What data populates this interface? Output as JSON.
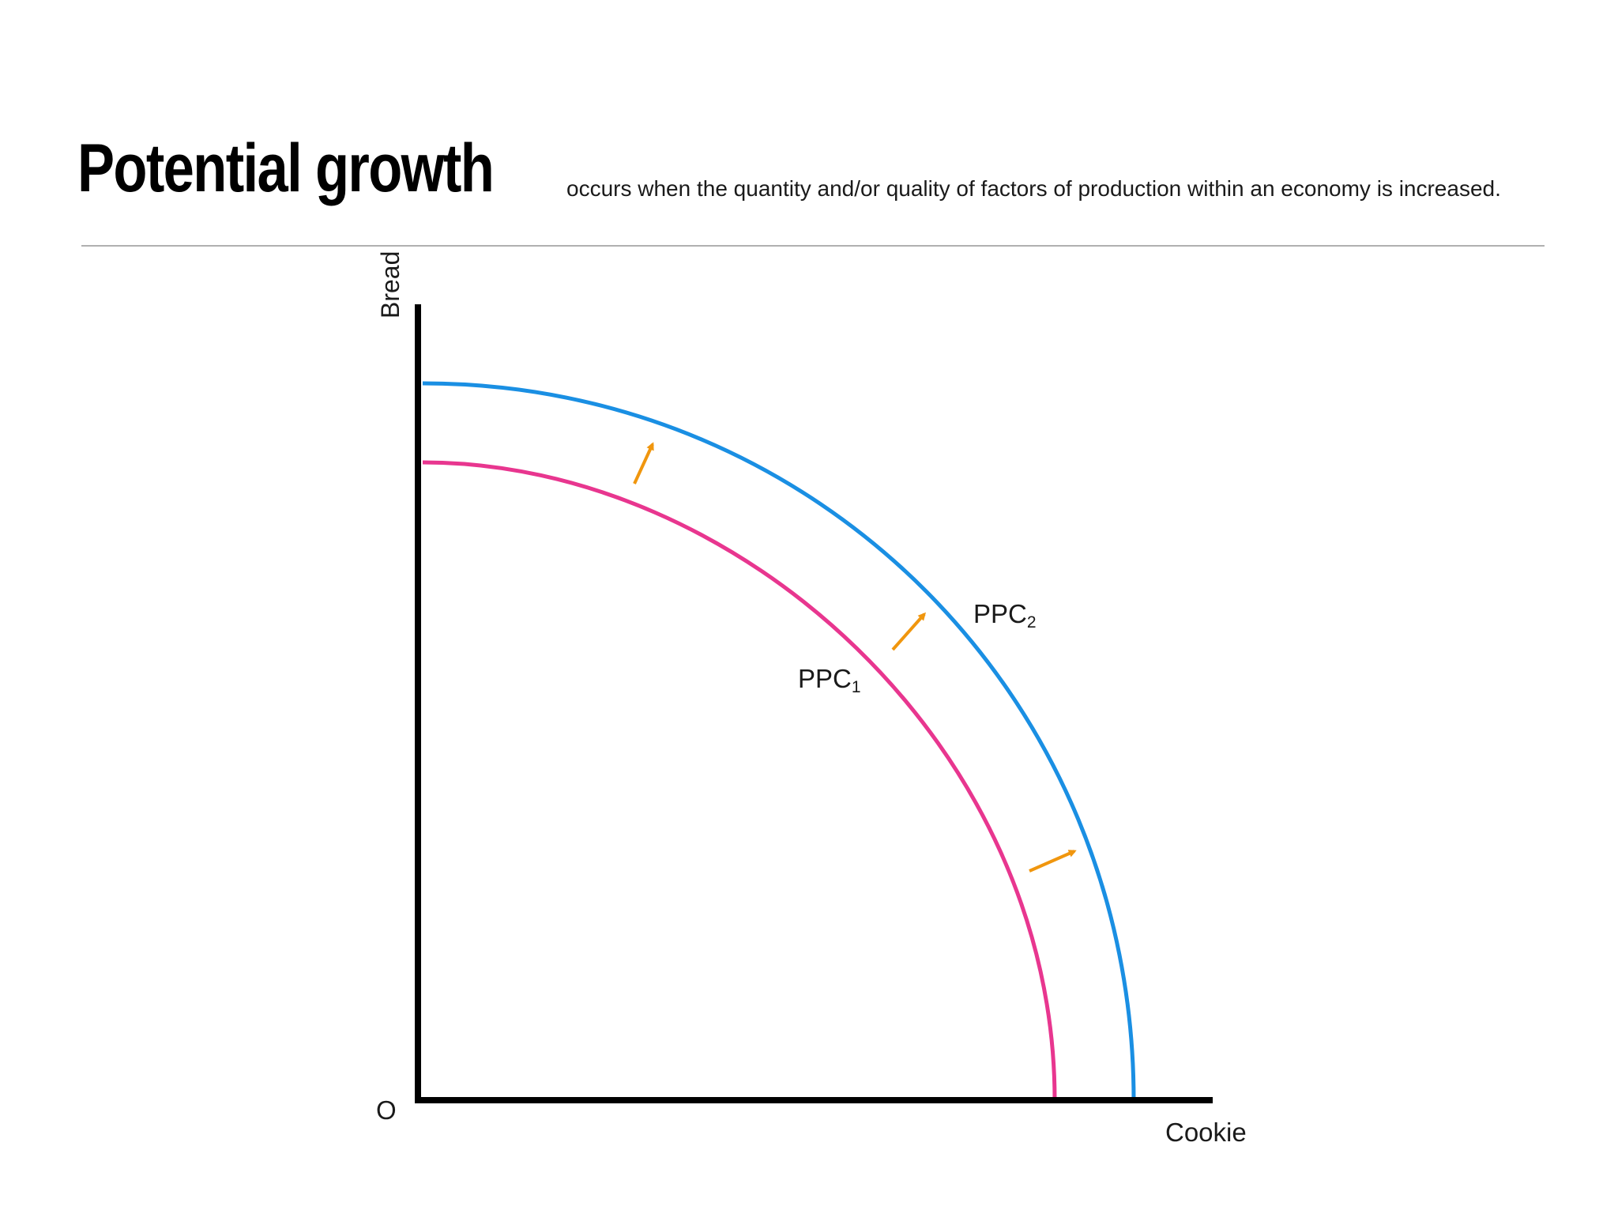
{
  "heading": {
    "title": "Potential growth",
    "subtitle": "occurs when the quantity and/or quality of factors of production within an economy is increased."
  },
  "diagram": {
    "y_axis_label": "Bread",
    "x_axis_label": "Cookie",
    "origin_label": "O",
    "curves": [
      {
        "name": "PPC",
        "subscript": "1",
        "color": "#e8368f"
      },
      {
        "name": "PPC",
        "subscript": "2",
        "color": "#1a8fe3"
      }
    ],
    "arrow_color": "#f0960e",
    "axis_color": "#000000"
  }
}
